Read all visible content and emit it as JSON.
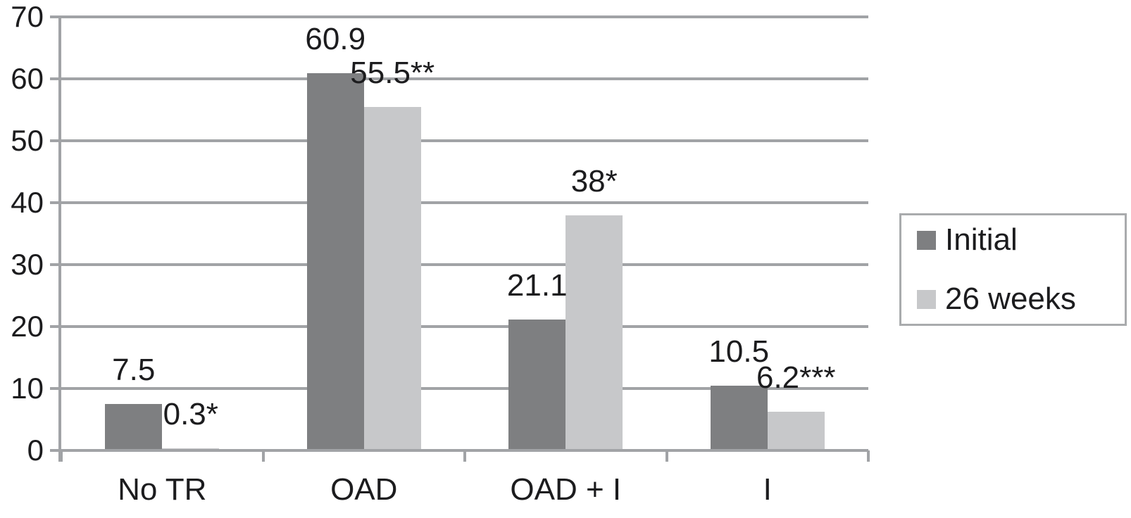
{
  "figure": {
    "background": "#ffffff",
    "text_color": "#1c1c1e",
    "axis_color": "#a1a3a6",
    "grid_color": "#a1a3a6",
    "legend_border_color": "#a9abad"
  },
  "chart_data": {
    "type": "bar",
    "title": "",
    "xlabel": "",
    "ylabel": "",
    "categories": [
      "No TR",
      "OAD",
      "OAD + I",
      "I"
    ],
    "series": [
      {
        "name": "Initial",
        "color": "#7e7f81",
        "values": [
          7.5,
          60.9,
          21.1,
          10.5
        ],
        "value_labels": [
          "7.5",
          "60.9",
          "21.1",
          "10.5"
        ]
      },
      {
        "name": "26 weeks",
        "color": "#c7c8ca",
        "values": [
          0.3,
          55.5,
          38,
          6.2
        ],
        "value_labels": [
          "0.3*",
          "55.5**",
          "38*",
          "6.2***"
        ]
      }
    ],
    "ylim": [
      0,
      70
    ],
    "yticks": [
      0,
      10,
      20,
      30,
      40,
      50,
      60,
      70
    ],
    "grid": true,
    "legend_position": "right-middle",
    "legend_entries": [
      "Initial",
      "26 weeks"
    ]
  }
}
